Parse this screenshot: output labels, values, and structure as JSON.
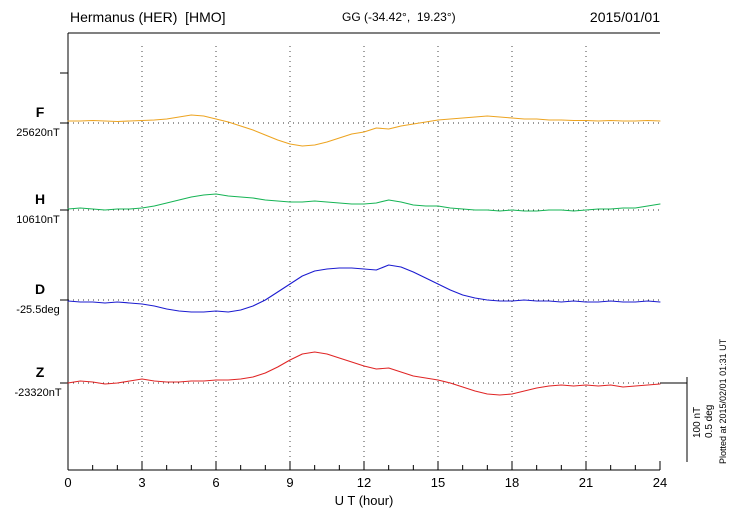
{
  "header": {
    "station": "Hermanus (HER)  [HMO]",
    "coords": "GG (-34.42°,  19.23°)",
    "date": "2015/01/01"
  },
  "x_axis": {
    "label": "U T (hour)",
    "min": 0,
    "max": 24,
    "major_ticks": [
      0,
      3,
      6,
      9,
      12,
      15,
      18,
      21,
      24
    ]
  },
  "scale_bar": {
    "nt": "100 nT",
    "deg": "0.5 deg"
  },
  "footer_note": "Plotted at 2015/02/01 01:31 UT",
  "chart_data": {
    "type": "line",
    "title": "Hermanus (HER) [HMO] magnetogram 2015/01/01",
    "x_unit": "UT hour",
    "x_start": 0,
    "x_step_hours": 0.5,
    "x_range": [
      0,
      24
    ],
    "grid": "dotted vertical every 3 h, dotted baseline per trace",
    "scale": {
      "per_division_nT": 100,
      "per_division_deg": 0.5
    },
    "series": [
      {
        "name": "F",
        "unit": "nT",
        "baseline_value": 25620,
        "baseline_label": "25620nT",
        "color": "#eda421",
        "offsets": [
          4,
          4,
          5,
          4,
          3,
          4,
          5,
          6,
          8,
          12,
          16,
          14,
          8,
          2,
          -6,
          -14,
          -24,
          -34,
          -42,
          -46,
          -44,
          -38,
          -30,
          -22,
          -18,
          -10,
          -12,
          -6,
          -2,
          2,
          6,
          8,
          10,
          12,
          14,
          12,
          10,
          8,
          8,
          6,
          6,
          5,
          5,
          4,
          5,
          4,
          4,
          5,
          4
        ]
      },
      {
        "name": "H",
        "unit": "nT",
        "baseline_value": 10610,
        "baseline_label": "10610nT",
        "color": "#16b455",
        "offsets": [
          2,
          4,
          2,
          0,
          2,
          2,
          4,
          8,
          14,
          20,
          26,
          30,
          32,
          28,
          26,
          24,
          20,
          18,
          16,
          16,
          18,
          16,
          14,
          12,
          12,
          14,
          20,
          16,
          10,
          8,
          8,
          4,
          2,
          0,
          0,
          -2,
          0,
          -2,
          -2,
          0,
          0,
          -2,
          0,
          2,
          2,
          4,
          4,
          8,
          12
        ]
      },
      {
        "name": "D",
        "unit": "deg",
        "baseline_value": -25.5,
        "baseline_label": "-25.5deg",
        "color": "#1b1bd0",
        "offsets": [
          -0.01,
          -0.02,
          -0.02,
          -0.03,
          -0.02,
          -0.03,
          -0.04,
          -0.06,
          -0.09,
          -0.11,
          -0.12,
          -0.12,
          -0.11,
          -0.12,
          -0.1,
          -0.06,
          0.0,
          0.08,
          0.16,
          0.24,
          0.29,
          0.31,
          0.32,
          0.32,
          0.31,
          0.3,
          0.35,
          0.33,
          0.28,
          0.22,
          0.16,
          0.1,
          0.05,
          0.02,
          0.0,
          -0.01,
          -0.01,
          0.0,
          -0.01,
          -0.01,
          -0.02,
          -0.01,
          -0.02,
          -0.02,
          -0.01,
          -0.02,
          -0.02,
          -0.01,
          -0.02
        ]
      },
      {
        "name": "Z",
        "unit": "nT",
        "baseline_value": -23320,
        "baseline_label": "-23320nT",
        "color": "#e02525",
        "offsets": [
          0,
          4,
          2,
          -2,
          0,
          4,
          8,
          4,
          2,
          2,
          4,
          4,
          6,
          6,
          8,
          12,
          20,
          32,
          46,
          58,
          62,
          58,
          50,
          42,
          34,
          28,
          30,
          22,
          14,
          10,
          6,
          0,
          -8,
          -16,
          -22,
          -24,
          -22,
          -16,
          -10,
          -6,
          -4,
          -6,
          -4,
          -6,
          -4,
          -8,
          -6,
          -4,
          -2
        ]
      }
    ]
  }
}
